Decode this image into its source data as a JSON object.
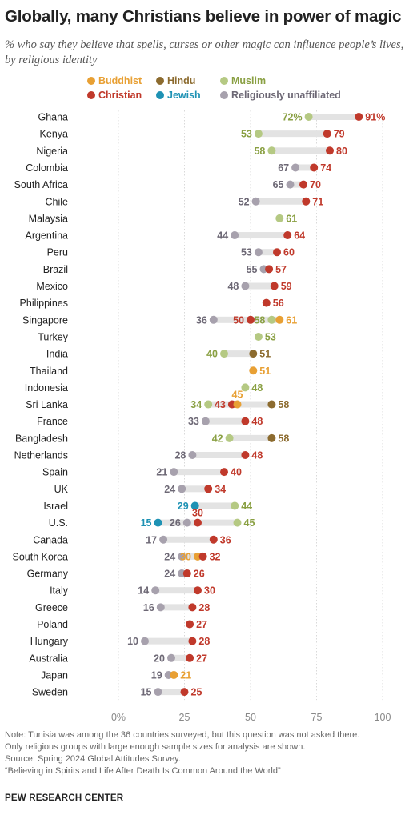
{
  "title": "Globally, many Christians believe in power of magic",
  "subtitle": "% who say they believe that spells, curses or other magic can influence people’s lives, by religious identity",
  "colors": {
    "Buddhist": "#e8a034",
    "Hindu": "#8c6b2f",
    "Muslim": "#b5c983",
    "Christian": "#c0392b",
    "Jewish": "#1e92b4",
    "Religiously unaffiliated": "#a7a1ad",
    "bar": "#e3e3e3",
    "grid": "#d9d9d9"
  },
  "label_colors": {
    "Buddhist": "#e8a034",
    "Hindu": "#8c6b2f",
    "Muslim": "#8aa043",
    "Christian": "#c0392b",
    "Jewish": "#1e92b4",
    "Religiously unaffiliated": "#6d6875"
  },
  "legend": [
    {
      "name": "Buddhist",
      "label": "Buddhist"
    },
    {
      "name": "Hindu",
      "label": "Hindu"
    },
    {
      "name": "Muslim",
      "label": "Muslim"
    },
    {
      "name": "Christian",
      "label": "Christian"
    },
    {
      "name": "Jewish",
      "label": "Jewish"
    },
    {
      "name": "Religiously unaffiliated",
      "label": "Religiously unaffiliated"
    }
  ],
  "chart_data": {
    "type": "scatter",
    "subtype": "dot plot",
    "xlim": [
      0,
      100
    ],
    "x_ticks": [
      0,
      25,
      50,
      75,
      100
    ],
    "x_tick_labels": [
      "0%",
      "25",
      "50",
      "75",
      "100"
    ],
    "grid": true,
    "rows": [
      {
        "country": "Ghana",
        "points": [
          {
            "group": "Muslim",
            "value": 72,
            "label": "72%"
          },
          {
            "group": "Christian",
            "value": 91,
            "label": "91%"
          }
        ]
      },
      {
        "country": "Kenya",
        "points": [
          {
            "group": "Muslim",
            "value": 53,
            "label": "53"
          },
          {
            "group": "Christian",
            "value": 79,
            "label": "79"
          }
        ]
      },
      {
        "country": "Nigeria",
        "points": [
          {
            "group": "Muslim",
            "value": 58,
            "label": "58"
          },
          {
            "group": "Christian",
            "value": 80,
            "label": "80"
          }
        ]
      },
      {
        "country": "Colombia",
        "points": [
          {
            "group": "Religiously unaffiliated",
            "value": 67,
            "label": "67"
          },
          {
            "group": "Christian",
            "value": 74,
            "label": "74"
          }
        ]
      },
      {
        "country": "South Africa",
        "points": [
          {
            "group": "Religiously unaffiliated",
            "value": 65,
            "label": "65"
          },
          {
            "group": "Christian",
            "value": 70,
            "label": "70"
          }
        ]
      },
      {
        "country": "Chile",
        "points": [
          {
            "group": "Religiously unaffiliated",
            "value": 52,
            "label": "52"
          },
          {
            "group": "Christian",
            "value": 71,
            "label": "71"
          }
        ]
      },
      {
        "country": "Malaysia",
        "points": [
          {
            "group": "Muslim",
            "value": 61,
            "label": "61"
          }
        ]
      },
      {
        "country": "Argentina",
        "points": [
          {
            "group": "Religiously unaffiliated",
            "value": 44,
            "label": "44"
          },
          {
            "group": "Christian",
            "value": 64,
            "label": "64"
          }
        ]
      },
      {
        "country": "Peru",
        "points": [
          {
            "group": "Religiously unaffiliated",
            "value": 53,
            "label": "53"
          },
          {
            "group": "Christian",
            "value": 60,
            "label": "60"
          }
        ]
      },
      {
        "country": "Brazil",
        "points": [
          {
            "group": "Religiously unaffiliated",
            "value": 55,
            "label": "55"
          },
          {
            "group": "Christian",
            "value": 57,
            "label": "57"
          }
        ]
      },
      {
        "country": "Mexico",
        "points": [
          {
            "group": "Religiously unaffiliated",
            "value": 48,
            "label": "48"
          },
          {
            "group": "Christian",
            "value": 59,
            "label": "59"
          }
        ]
      },
      {
        "country": "Philippines",
        "points": [
          {
            "group": "Christian",
            "value": 56,
            "label": "56"
          }
        ]
      },
      {
        "country": "Singapore",
        "points": [
          {
            "group": "Religiously unaffiliated",
            "value": 36,
            "label": "36"
          },
          {
            "group": "Christian",
            "value": 50,
            "label": "50"
          },
          {
            "group": "Muslim",
            "value": 58,
            "label": "58"
          },
          {
            "group": "Buddhist",
            "value": 61,
            "label": "61"
          }
        ]
      },
      {
        "country": "Turkey",
        "points": [
          {
            "group": "Muslim",
            "value": 53,
            "label": "53"
          }
        ]
      },
      {
        "country": "India",
        "points": [
          {
            "group": "Muslim",
            "value": 40,
            "label": "40"
          },
          {
            "group": "Hindu",
            "value": 51,
            "label": "51"
          }
        ]
      },
      {
        "country": "Thailand",
        "points": [
          {
            "group": "Buddhist",
            "value": 51,
            "label": "51"
          }
        ]
      },
      {
        "country": "Indonesia",
        "points": [
          {
            "group": "Muslim",
            "value": 48,
            "label": "48"
          }
        ]
      },
      {
        "country": "Sri Lanka",
        "points": [
          {
            "group": "Muslim",
            "value": 34,
            "label": "34"
          },
          {
            "group": "Christian",
            "value": 43,
            "label": "43"
          },
          {
            "group": "Buddhist",
            "value": 45,
            "label": "45"
          },
          {
            "group": "Hindu",
            "value": 58,
            "label": "58"
          }
        ]
      },
      {
        "country": "France",
        "points": [
          {
            "group": "Religiously unaffiliated",
            "value": 33,
            "label": "33"
          },
          {
            "group": "Christian",
            "value": 48,
            "label": "48"
          }
        ]
      },
      {
        "country": "Bangladesh",
        "points": [
          {
            "group": "Muslim",
            "value": 42,
            "label": "42"
          },
          {
            "group": "Hindu",
            "value": 58,
            "label": "58"
          }
        ]
      },
      {
        "country": "Netherlands",
        "points": [
          {
            "group": "Religiously unaffiliated",
            "value": 28,
            "label": "28"
          },
          {
            "group": "Christian",
            "value": 48,
            "label": "48"
          }
        ]
      },
      {
        "country": "Spain",
        "points": [
          {
            "group": "Religiously unaffiliated",
            "value": 21,
            "label": "21"
          },
          {
            "group": "Christian",
            "value": 40,
            "label": "40"
          }
        ]
      },
      {
        "country": "UK",
        "points": [
          {
            "group": "Religiously unaffiliated",
            "value": 24,
            "label": "24"
          },
          {
            "group": "Christian",
            "value": 34,
            "label": "34"
          }
        ]
      },
      {
        "country": "Israel",
        "points": [
          {
            "group": "Jewish",
            "value": 29,
            "label": "29"
          },
          {
            "group": "Muslim",
            "value": 44,
            "label": "44"
          }
        ]
      },
      {
        "country": "U.S.",
        "points": [
          {
            "group": "Jewish",
            "value": 15,
            "label": "15"
          },
          {
            "group": "Religiously unaffiliated",
            "value": 26,
            "label": "26"
          },
          {
            "group": "Christian",
            "value": 30,
            "label": "30"
          },
          {
            "group": "Muslim",
            "value": 45,
            "label": "45"
          }
        ]
      },
      {
        "country": "Canada",
        "points": [
          {
            "group": "Religiously unaffiliated",
            "value": 17,
            "label": "17"
          },
          {
            "group": "Christian",
            "value": 36,
            "label": "36"
          }
        ]
      },
      {
        "country": "South Korea",
        "points": [
          {
            "group": "Religiously unaffiliated",
            "value": 24,
            "label": "24"
          },
          {
            "group": "Buddhist",
            "value": 30,
            "label": "30"
          },
          {
            "group": "Christian",
            "value": 32,
            "label": "32"
          }
        ]
      },
      {
        "country": "Germany",
        "points": [
          {
            "group": "Religiously unaffiliated",
            "value": 24,
            "label": "24"
          },
          {
            "group": "Christian",
            "value": 26,
            "label": "26"
          }
        ]
      },
      {
        "country": "Italy",
        "points": [
          {
            "group": "Religiously unaffiliated",
            "value": 14,
            "label": "14"
          },
          {
            "group": "Christian",
            "value": 30,
            "label": "30"
          }
        ]
      },
      {
        "country": "Greece",
        "points": [
          {
            "group": "Religiously unaffiliated",
            "value": 16,
            "label": "16"
          },
          {
            "group": "Christian",
            "value": 28,
            "label": "28"
          }
        ]
      },
      {
        "country": "Poland",
        "points": [
          {
            "group": "Christian",
            "value": 27,
            "label": "27"
          }
        ]
      },
      {
        "country": "Hungary",
        "points": [
          {
            "group": "Religiously unaffiliated",
            "value": 10,
            "label": "10"
          },
          {
            "group": "Christian",
            "value": 28,
            "label": "28"
          }
        ]
      },
      {
        "country": "Australia",
        "points": [
          {
            "group": "Religiously unaffiliated",
            "value": 20,
            "label": "20"
          },
          {
            "group": "Christian",
            "value": 27,
            "label": "27"
          }
        ]
      },
      {
        "country": "Japan",
        "points": [
          {
            "group": "Religiously unaffiliated",
            "value": 19,
            "label": "19"
          },
          {
            "group": "Buddhist",
            "value": 21,
            "label": "21"
          }
        ]
      },
      {
        "country": "Sweden",
        "points": [
          {
            "group": "Religiously unaffiliated",
            "value": 15,
            "label": "15"
          },
          {
            "group": "Christian",
            "value": 25,
            "label": "25"
          }
        ]
      }
    ]
  },
  "notes": [
    "Note: Tunisia was among the 36 countries surveyed, but this question was not asked there.",
    "Only religious groups with large enough sample sizes for analysis are shown.",
    "Source: Spring 2024 Global Attitudes Survey.",
    "“Believing in Spirits and Life After Death Is Common Around the World”"
  ],
  "organization": "PEW RESEARCH CENTER"
}
